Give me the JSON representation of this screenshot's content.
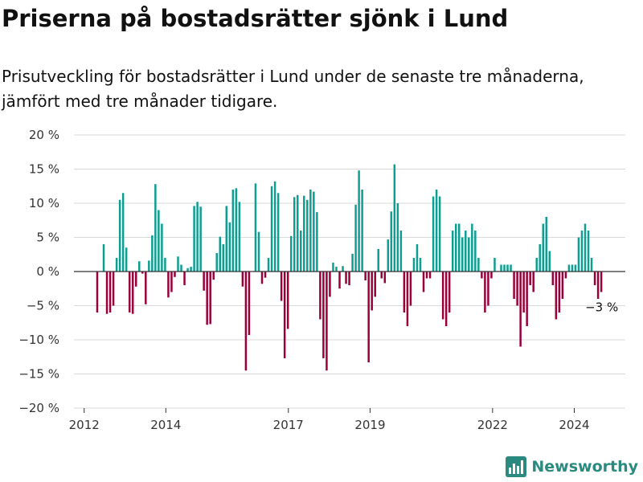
{
  "title": "Priserna på bostadsrätter sjönk i Lund",
  "subtitle": "Prisutveckling för bostadsrätter i Lund under de senaste tre månaderna, jämfört med tre månader tidigare.",
  "brand": "Newsworthy",
  "colors": {
    "positive": "#0e9e91",
    "negative": "#99003a",
    "brand": "#2a8a80"
  },
  "chart_data": {
    "type": "bar",
    "title": "Priserna på bostadsrätter sjönk i Lund",
    "xlabel": "",
    "ylabel": "",
    "ylim": [
      -20,
      20
    ],
    "y_ticks": [
      20,
      15,
      10,
      5,
      0,
      -5,
      -10,
      -15,
      -20
    ],
    "y_tick_labels": [
      "20 %",
      "15 %",
      "10 %",
      "5 %",
      "0 %",
      "−5 %",
      "−10 %",
      "−15 %",
      "−20 %"
    ],
    "x_ticks": [
      2012,
      2014,
      2017,
      2019,
      2022,
      2024
    ],
    "x_tick_labels": [
      "2012",
      "2014",
      "2017",
      "2019",
      "2022",
      "2024"
    ],
    "x_range": [
      2011.75,
      2025.25
    ],
    "grid": "horizontal",
    "annotation": "−3 %",
    "values": [
      -6,
      0,
      4,
      -6.2,
      -6,
      -5,
      2,
      10.5,
      11.5,
      3.5,
      -6,
      -6.2,
      -2.2,
      1.5,
      -0.3,
      -4.8,
      1.6,
      5.3,
      12.8,
      9,
      7,
      2,
      -3.8,
      -3,
      -0.8,
      2.2,
      1,
      -2,
      0.5,
      0.7,
      9.6,
      10.2,
      9.5,
      -2.8,
      -7.8,
      -7.7,
      -1.2,
      2.7,
      5.1,
      4,
      9.6,
      7.2,
      12,
      12.2,
      10.2,
      -2.2,
      -14.5,
      -9.3,
      0,
      12.9,
      5.8,
      -1.8,
      -0.9,
      2,
      12.5,
      13.2,
      11.5,
      -4.3,
      -12.7,
      -8.4,
      5.2,
      10.9,
      11.2,
      6,
      11.1,
      10.5,
      12,
      11.7,
      8.7,
      -7,
      -12.7,
      -14.5,
      -3.7,
      1.3,
      0.7,
      -2.5,
      0.8,
      -1.8,
      -2,
      2.6,
      9.8,
      14.8,
      12,
      -1.3,
      -13.3,
      -5.7,
      -3.7,
      3.3,
      -1,
      -1.7,
      4.7,
      8.8,
      15.7,
      10,
      6,
      -6,
      -8,
      -5,
      2,
      4,
      2,
      -3,
      -1,
      -1,
      11,
      12,
      11,
      -7,
      -8,
      -6,
      6,
      7,
      7,
      5,
      6,
      5,
      7,
      6,
      2,
      -1,
      -6,
      -5,
      -1,
      2,
      0,
      1,
      1,
      1,
      1,
      -4,
      -5,
      -11,
      -6,
      -8,
      -2,
      -3,
      2,
      4,
      7,
      8,
      3,
      -2,
      -7,
      -6,
      -4,
      -1,
      1,
      1,
      1,
      5,
      6,
      7,
      6,
      2,
      -2,
      -4,
      -3
    ]
  }
}
